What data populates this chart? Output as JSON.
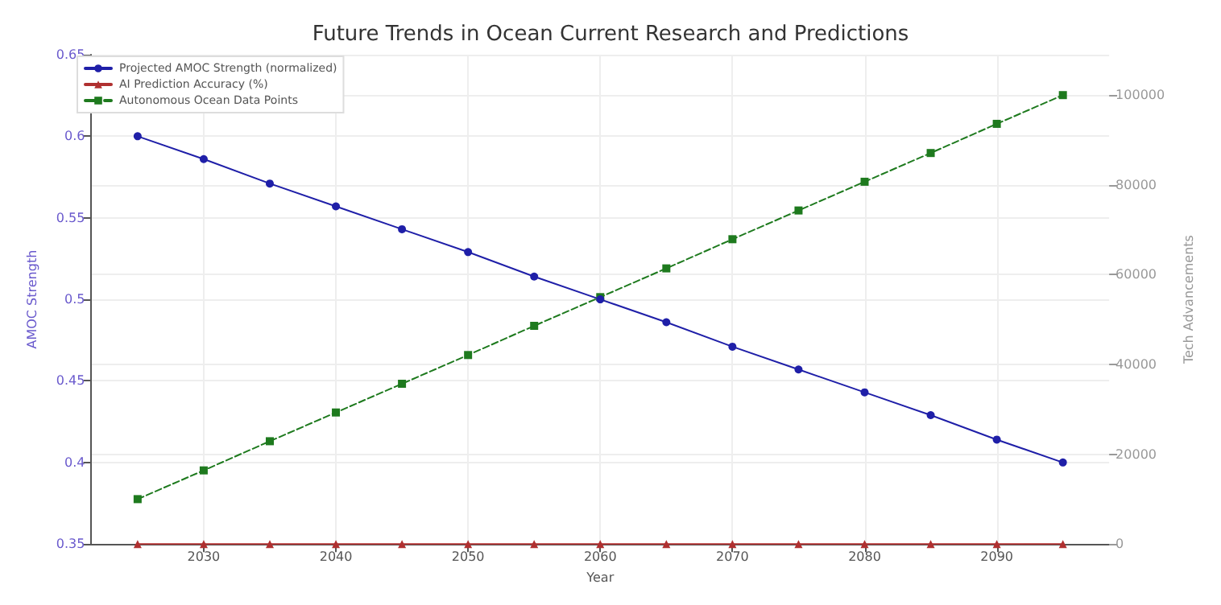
{
  "chart_data": {
    "type": "line",
    "title": "Future Trends in Ocean Current Research and Predictions",
    "xlabel": "Year",
    "ylabel": "AMOC Strength",
    "y2label": "Tech Advancements",
    "x": [
      2025,
      2030,
      2035,
      2040,
      2045,
      2050,
      2055,
      2060,
      2065,
      2070,
      2075,
      2080,
      2085,
      2090,
      2095
    ],
    "series": [
      {
        "name": "Projected AMOC Strength (normalized)",
        "color": "#1f1fa8",
        "marker": "circle",
        "line_style": "solid",
        "values": [
          0.6,
          0.586,
          0.571,
          0.557,
          0.543,
          0.529,
          0.514,
          0.5,
          0.486,
          0.471,
          0.457,
          0.443,
          0.429,
          0.414,
          0.4
        ]
      },
      {
        "name": "AI Prediction Accuracy (%)",
        "color": "#b03030",
        "marker": "triangle",
        "line_style": "solid",
        "axis": "y2",
        "values": [
          0,
          0,
          0,
          0,
          0,
          0,
          0,
          0,
          0,
          0,
          0,
          0,
          0,
          0,
          0
        ]
      },
      {
        "name": "Autonomous Ocean Data Points",
        "color": "#1e7a1e",
        "marker": "square",
        "line_style": "dashed",
        "axis": "y2",
        "values": [
          10000,
          16400,
          22900,
          29300,
          35700,
          42100,
          48600,
          55000,
          61400,
          67900,
          74300,
          80700,
          87100,
          93600,
          100000
        ]
      }
    ],
    "xlim": [
      2021.5,
      2098.5
    ],
    "xticks": [
      2030,
      2040,
      2050,
      2060,
      2070,
      2080,
      2090
    ],
    "ylim": [
      0.35,
      0.65
    ],
    "yticks": [
      0.35,
      0.4,
      0.45,
      0.5,
      0.55,
      0.6,
      0.65
    ],
    "y2lim": [
      0,
      109000
    ],
    "y2ticks": [
      0,
      20000,
      40000,
      60000,
      80000,
      100000
    ],
    "grid": true,
    "legend": "top left"
  }
}
